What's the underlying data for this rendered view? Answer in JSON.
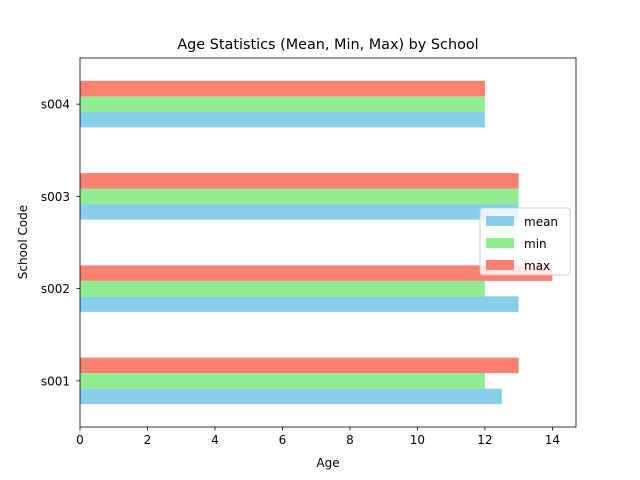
{
  "chart_data": {
    "type": "bar",
    "orientation": "horizontal",
    "title": "Age Statistics (Mean, Min, Max) by School",
    "xlabel": "Age",
    "ylabel": "School Code",
    "categories": [
      "s001",
      "s002",
      "s003",
      "s004"
    ],
    "series": [
      {
        "name": "mean",
        "color": "#87ceeb",
        "values": [
          12.5,
          13,
          13,
          12
        ]
      },
      {
        "name": "min",
        "color": "#90ee90",
        "values": [
          12,
          12,
          13,
          12
        ]
      },
      {
        "name": "max",
        "color": "#fa8072",
        "values": [
          13,
          14,
          13,
          12
        ]
      }
    ],
    "xlim": [
      0,
      14.7
    ],
    "xticks": [
      0,
      2,
      4,
      6,
      8,
      10,
      12,
      14
    ],
    "grid": false,
    "legend_position": "center-right"
  }
}
